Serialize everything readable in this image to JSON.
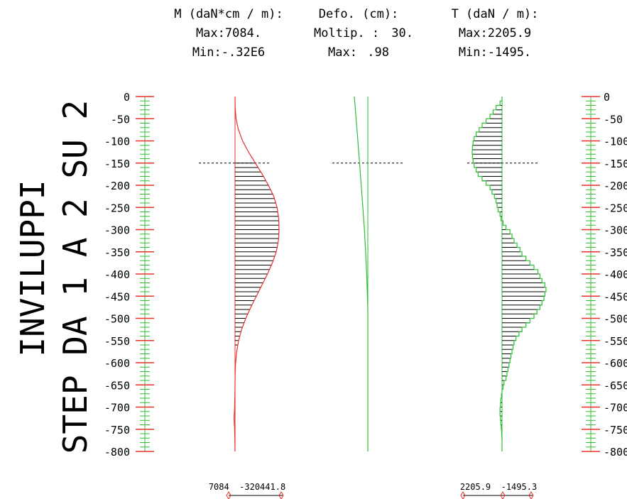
{
  "side_title": {
    "line1": "INVILUPPI",
    "line2": "STEP DA 1 A 2 SU 2"
  },
  "headers": {
    "moment": {
      "title": "M (daN*cm / m):",
      "max_label": "Max:7084.",
      "min_label": "Min:-.32E6"
    },
    "deformation": {
      "title": "Defo. (cm):",
      "mult_label": "Moltip. :",
      "mult_value": "30.",
      "max_label": "Max:",
      "max_value": ".98"
    },
    "shear": {
      "title": "T (daN / m):",
      "max_label": "Max:2205.9",
      "min_label": "Min:-1495."
    }
  },
  "footer": {
    "moment_values": "7084  -320441.8",
    "shear_values": "2205.9  -1495.3"
  },
  "colors": {
    "axis_red": "#e8322c",
    "tick_green": "#2fbe35",
    "moment_curve": "#e8322c",
    "deformation_line": "#2fbe35",
    "shear_outline": "#2fbe35",
    "hatch": "#000000",
    "dashed": "#000000"
  },
  "chart_data": {
    "type": "line",
    "depth_axis": {
      "ticks": [
        "0",
        "-50",
        "-100",
        "-150",
        "-200",
        "-250",
        "-300",
        "-350",
        "-400",
        "-450",
        "-500",
        "-550",
        "-600",
        "-650",
        "-700",
        "-750",
        "-800"
      ],
      "range": [
        0,
        -800
      ],
      "minor_step": 10
    },
    "reference_depth": -150,
    "series": [
      {
        "key": "moment",
        "depth": [
          0,
          -25,
          -50,
          -75,
          -100,
          -125,
          -150,
          -175,
          -200,
          -225,
          -250,
          -275,
          -300,
          -325,
          -350,
          -375,
          -400,
          -425,
          -450,
          -475,
          -500,
          -525,
          -550,
          -575,
          -600,
          -625,
          -650,
          -700,
          -725,
          -750,
          -800
        ],
        "values": [
          0,
          -1200,
          -7000,
          -25000,
          -55000,
          -98000,
          -148000,
          -198000,
          -243000,
          -282000,
          -306000,
          -318000,
          -320441.8,
          -316000,
          -300000,
          -272000,
          -236000,
          -196000,
          -155000,
          -115000,
          -78000,
          -48000,
          -26000,
          -12000,
          -4000,
          -800,
          0,
          3000,
          7084,
          3000,
          0
        ],
        "max": 7084,
        "min": -320441.8
      },
      {
        "key": "deformation",
        "depth": [
          0,
          -50,
          -100,
          -150,
          -200,
          -250,
          -300,
          -350,
          -400,
          -450,
          -480,
          -500,
          -800
        ],
        "values": [
          0.98,
          0.85,
          0.72,
          0.6,
          0.48,
          0.36,
          0.25,
          0.16,
          0.08,
          0.03,
          0,
          0,
          0
        ],
        "multiplier": 30,
        "max": 0.98
      },
      {
        "key": "shear",
        "depth": [
          0,
          -10,
          -20,
          -30,
          -40,
          -50,
          -60,
          -70,
          -80,
          -90,
          -100,
          -110,
          -120,
          -130,
          -140,
          -150,
          -160,
          -170,
          -180,
          -190,
          -200,
          -210,
          -220,
          -230,
          -240,
          -250,
          -260,
          -270,
          -280,
          -290,
          -300,
          -310,
          -320,
          -330,
          -340,
          -350,
          -360,
          -370,
          -380,
          -390,
          -400,
          -410,
          -420,
          -430,
          -440,
          -450,
          -460,
          -470,
          -480,
          -490,
          -500,
          -510,
          -520,
          -530,
          -540,
          -550,
          -560,
          -570,
          -580,
          -590,
          -600,
          -610,
          -620,
          -630,
          -640,
          -650,
          -660,
          -670,
          -680,
          -690,
          -700,
          -710,
          -720,
          -730,
          -740,
          -750,
          -760,
          -770,
          -780,
          -790
        ],
        "values": [
          0,
          -100,
          -300,
          -450,
          -600,
          -800,
          -1000,
          -1150,
          -1300,
          -1400,
          -1450,
          -1480,
          -1495.3,
          -1480,
          -1450,
          -1400,
          -1300,
          -1200,
          -1000,
          -800,
          -600,
          -500,
          -380,
          -300,
          -250,
          -200,
          -100,
          -50,
          50,
          200,
          400,
          500,
          600,
          750,
          900,
          1000,
          1200,
          1400,
          1600,
          1800,
          1900,
          2000,
          2150,
          2205.9,
          2150,
          2100,
          2000,
          1900,
          1750,
          1600,
          1400,
          1200,
          1000,
          850,
          700,
          600,
          550,
          500,
          450,
          400,
          350,
          300,
          250,
          200,
          100,
          50,
          0,
          -30,
          -60,
          -80,
          -100,
          -100,
          -80,
          -60,
          -40,
          -20,
          -10,
          0,
          0,
          0
        ],
        "max": 2205.9,
        "min": -1495.3
      }
    ]
  }
}
